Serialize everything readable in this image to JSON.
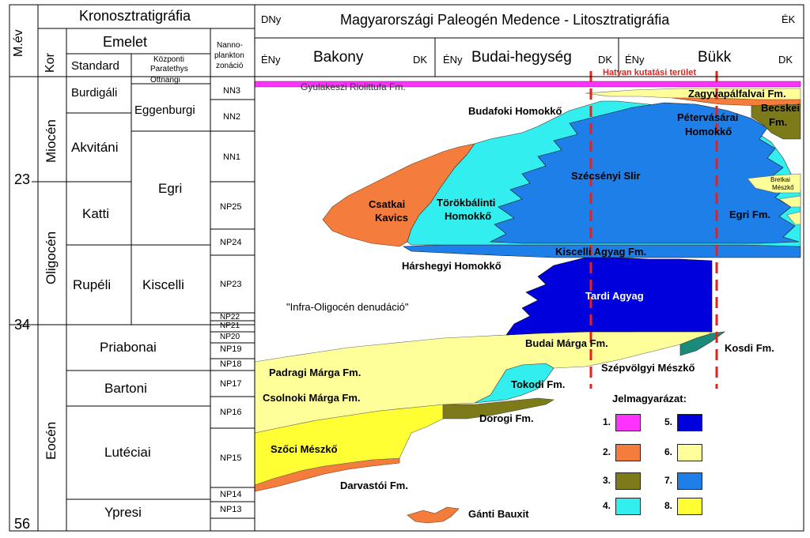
{
  "left_panel": {
    "title": "Kronosztratigráfia",
    "age_axis_label": "M.év",
    "kor_label": "Kor",
    "emelet_label": "Emelet",
    "standard_label": "Standard",
    "paratethys_label_1": "Központi",
    "paratethys_label_2": "Paratethys",
    "nanno_label_1": "Nanno-",
    "nanno_label_2": "plankton",
    "nanno_label_3": "zonáció",
    "ages": [
      "23",
      "34",
      "56"
    ],
    "epochs": [
      "Miocén",
      "Oligocén",
      "Eocén"
    ],
    "standard_stages": [
      "Burdigáli",
      "Akvitáni",
      "Katti",
      "Rupéli",
      "Priabonai",
      "Bartoni",
      "Lutéciai",
      "Ypresi"
    ],
    "paratethys_stages": [
      "Ottnangi",
      "Eggenburgi",
      "Egri",
      "Kiscelli"
    ],
    "nanno_zones": [
      "NN3",
      "NN2",
      "NN1",
      "NP25",
      "NP24",
      "NP23",
      "NP22",
      "NP21",
      "NP20",
      "NP19",
      "NP18",
      "NP17",
      "NP16",
      "NP15",
      "NP14",
      "NP13"
    ]
  },
  "right_panel": {
    "title": "Magyarországi Paleogén Medence - Litosztratigráfia",
    "dir_left": "DNy",
    "dir_right": "ÉK",
    "regions": [
      {
        "from": "ÉNy",
        "name": "Bakony",
        "to": "DK"
      },
      {
        "from": "ÉNy",
        "name": "Budai-hegység",
        "to": "DK"
      },
      {
        "from": "ÉNy",
        "name": "Bükk",
        "to": "DK"
      }
    ],
    "research_area": "Hatvan kutatási terület"
  },
  "formations": {
    "gyulakeszi": "Gyulakeszi Riolittufa Fm.",
    "zagyvapalfalvai": "Zagyvapálfalvai Fm.",
    "budafoki": "Budafoki Homokkő",
    "becskei_1": "Becskei",
    "becskei_2": "Fm.",
    "petervasarai_1": "Pétervásárai",
    "petervasarai_2": "Homokkő",
    "szecsenyi": "Szécsényi Slir",
    "bretkai_1": "Bretkai",
    "bretkai_2": "Mészkő",
    "csatkai_1": "Csatkai",
    "csatkai_2": "Kavics",
    "torokbalinti_1": "Törökbálinti",
    "torokbalinti_2": "Homokkő",
    "egri": "Egri Fm.",
    "kiscelli": "Kiscelli Agyag Fm.",
    "harshegyi": "Hárshegyi Homokkő",
    "tardi": "Tardi Agyag",
    "infra": "\"Infra-Oligocén denudáció\"",
    "budai_marga": "Budai Márga Fm.",
    "kosdi": "Kosdi Fm.",
    "padragi": "Padragi Márga Fm.",
    "szepvolgyi": "Szépvölgyi Mészkő",
    "tokodi": "Tokodi Fm.",
    "csolnoki": "Csolnoki Márga Fm.",
    "dorogi": "Dorogi Fm.",
    "szoci": "Szőci Mészkő",
    "darvastoi": "Darvastói Fm.",
    "ganti": "Gánti Bauxit"
  },
  "legend": {
    "title": "Jelmagyarázat:",
    "items": [
      {
        "label": "1.",
        "color": "#ff33ff"
      },
      {
        "label": "2.",
        "color": "#f47c3c"
      },
      {
        "label": "3.",
        "color": "#7d7a1a"
      },
      {
        "label": "4.",
        "color": "#33eeee"
      },
      {
        "label": "5.",
        "color": "#0000dd"
      },
      {
        "label": "6.",
        "color": "#ffff99"
      },
      {
        "label": "7.",
        "color": "#1f7fe8"
      },
      {
        "label": "8.",
        "color": "#ffff33"
      }
    ]
  },
  "colors": {
    "rhyolite": "#ff33ff",
    "orange": "#f47c3c",
    "olive": "#7d7a1a",
    "cyan": "#33eeee",
    "darkblue": "#0000dd",
    "paleyellow": "#ffff99",
    "blue": "#1f7fe8",
    "yellow": "#ffff33",
    "teal": "#1a8a7a",
    "redline": "#e8201a"
  }
}
